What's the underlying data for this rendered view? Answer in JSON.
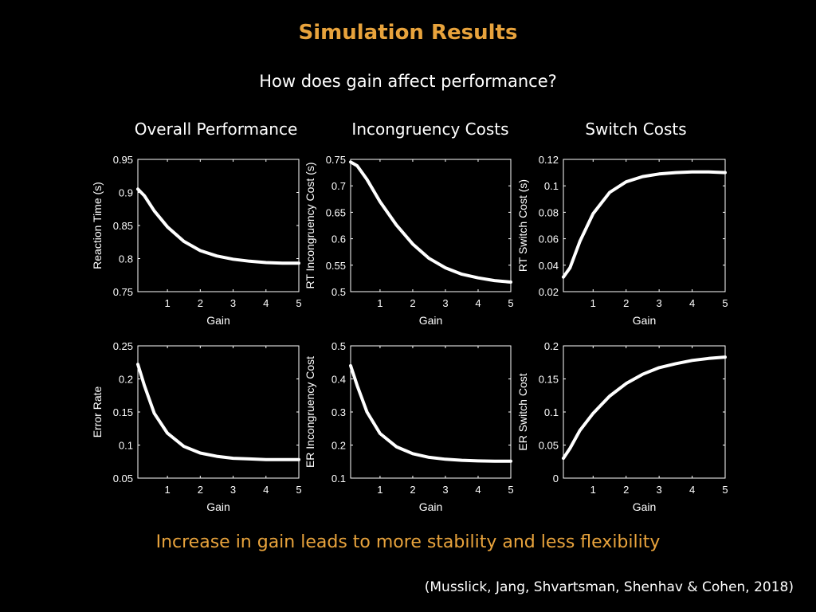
{
  "slide": {
    "title": "Simulation Results",
    "subtitle": "How does gain affect performance?",
    "columns": [
      "Overall Performance",
      "Incongruency Costs",
      "Switch Costs"
    ],
    "conclusion": "Increase in gain leads to more stability and less flexibility",
    "citation": "(Musslick, Jang, Shvartsman, Shenhav & Cohen, 2018)"
  },
  "colors": {
    "accent": "#E8A33C",
    "background": "#000000",
    "line": "#FFFFFF"
  },
  "chart_data": [
    {
      "type": "line",
      "xlabel": "Gain",
      "ylabel": "Reaction Time (s)",
      "xlim": [
        0.1,
        5
      ],
      "ylim": [
        0.75,
        0.95
      ],
      "xticks": [
        1,
        2,
        3,
        4,
        5
      ],
      "yticks": [
        0.75,
        0.8,
        0.85,
        0.9,
        0.95
      ],
      "ytick_labels": [
        "0.75",
        "0.8",
        "0.85",
        "0.9",
        "0.95"
      ],
      "grid": false,
      "series": [
        {
          "x": [
            0.1,
            0.3,
            0.6,
            1,
            1.5,
            2,
            2.5,
            3,
            3.5,
            4,
            4.5,
            5
          ],
          "y": [
            0.905,
            0.895,
            0.872,
            0.848,
            0.826,
            0.812,
            0.804,
            0.799,
            0.796,
            0.794,
            0.793,
            0.793
          ]
        }
      ]
    },
    {
      "type": "line",
      "xlabel": "Gain",
      "ylabel": "RT Incongruency Cost (s)",
      "xlim": [
        0.1,
        5
      ],
      "ylim": [
        0.5,
        0.75
      ],
      "xticks": [
        1,
        2,
        3,
        4,
        5
      ],
      "yticks": [
        0.5,
        0.55,
        0.6,
        0.65,
        0.7,
        0.75
      ],
      "ytick_labels": [
        "0.5",
        "0.55",
        "0.6",
        "0.65",
        "0.7",
        "0.75"
      ],
      "grid": false,
      "series": [
        {
          "x": [
            0.1,
            0.3,
            0.6,
            1,
            1.5,
            2,
            2.5,
            3,
            3.5,
            4,
            4.5,
            5
          ],
          "y": [
            0.745,
            0.738,
            0.712,
            0.67,
            0.626,
            0.59,
            0.563,
            0.545,
            0.533,
            0.526,
            0.521,
            0.518
          ]
        }
      ]
    },
    {
      "type": "line",
      "xlabel": "Gain",
      "ylabel": "RT Switch Cost (s)",
      "xlim": [
        0.1,
        5
      ],
      "ylim": [
        0.02,
        0.12
      ],
      "xticks": [
        1,
        2,
        3,
        4,
        5
      ],
      "yticks": [
        0.02,
        0.04,
        0.06,
        0.08,
        0.1,
        0.12
      ],
      "ytick_labels": [
        "0.02",
        "0.04",
        "0.06",
        "0.08",
        "0.1",
        "0.12"
      ],
      "grid": false,
      "series": [
        {
          "x": [
            0.1,
            0.3,
            0.6,
            1,
            1.5,
            2,
            2.5,
            3,
            3.5,
            4,
            4.5,
            5
          ],
          "y": [
            0.031,
            0.038,
            0.058,
            0.079,
            0.095,
            0.103,
            0.107,
            0.109,
            0.11,
            0.1105,
            0.1105,
            0.11
          ]
        }
      ]
    },
    {
      "type": "line",
      "xlabel": "Gain",
      "ylabel": "Error Rate",
      "xlim": [
        0.1,
        5
      ],
      "ylim": [
        0.05,
        0.25
      ],
      "xticks": [
        1,
        2,
        3,
        4,
        5
      ],
      "yticks": [
        0.05,
        0.1,
        0.15,
        0.2,
        0.25
      ],
      "ytick_labels": [
        "0.05",
        "0.1",
        "0.15",
        "0.2",
        "0.25"
      ],
      "grid": false,
      "series": [
        {
          "x": [
            0.1,
            0.3,
            0.6,
            1,
            1.5,
            2,
            2.5,
            3,
            3.5,
            4,
            4.5,
            5
          ],
          "y": [
            0.222,
            0.19,
            0.148,
            0.118,
            0.098,
            0.088,
            0.083,
            0.08,
            0.079,
            0.078,
            0.078,
            0.078
          ]
        }
      ]
    },
    {
      "type": "line",
      "xlabel": "Gain",
      "ylabel": "ER Incongruency Cost",
      "xlim": [
        0.1,
        5
      ],
      "ylim": [
        0.1,
        0.5
      ],
      "xticks": [
        1,
        2,
        3,
        4,
        5
      ],
      "yticks": [
        0.1,
        0.2,
        0.3,
        0.4,
        0.5
      ],
      "ytick_labels": [
        "0.1",
        "0.2",
        "0.3",
        "0.4",
        "0.5"
      ],
      "grid": false,
      "series": [
        {
          "x": [
            0.1,
            0.3,
            0.6,
            1,
            1.5,
            2,
            2.5,
            3,
            3.5,
            4,
            4.5,
            5
          ],
          "y": [
            0.44,
            0.38,
            0.3,
            0.235,
            0.195,
            0.174,
            0.163,
            0.157,
            0.154,
            0.152,
            0.151,
            0.151
          ]
        }
      ]
    },
    {
      "type": "line",
      "xlabel": "Gain",
      "ylabel": "ER Switch Cost",
      "xlim": [
        0.1,
        5
      ],
      "ylim": [
        0,
        0.2
      ],
      "xticks": [
        1,
        2,
        3,
        4,
        5
      ],
      "yticks": [
        0,
        0.05,
        0.1,
        0.15,
        0.2
      ],
      "ytick_labels": [
        "0",
        "0.05",
        "0.1",
        "0.15",
        "0.2"
      ],
      "grid": false,
      "series": [
        {
          "x": [
            0.1,
            0.3,
            0.6,
            1,
            1.5,
            2,
            2.5,
            3,
            3.5,
            4,
            4.5,
            5
          ],
          "y": [
            0.03,
            0.045,
            0.072,
            0.098,
            0.124,
            0.143,
            0.157,
            0.167,
            0.173,
            0.178,
            0.181,
            0.183
          ]
        }
      ]
    }
  ]
}
